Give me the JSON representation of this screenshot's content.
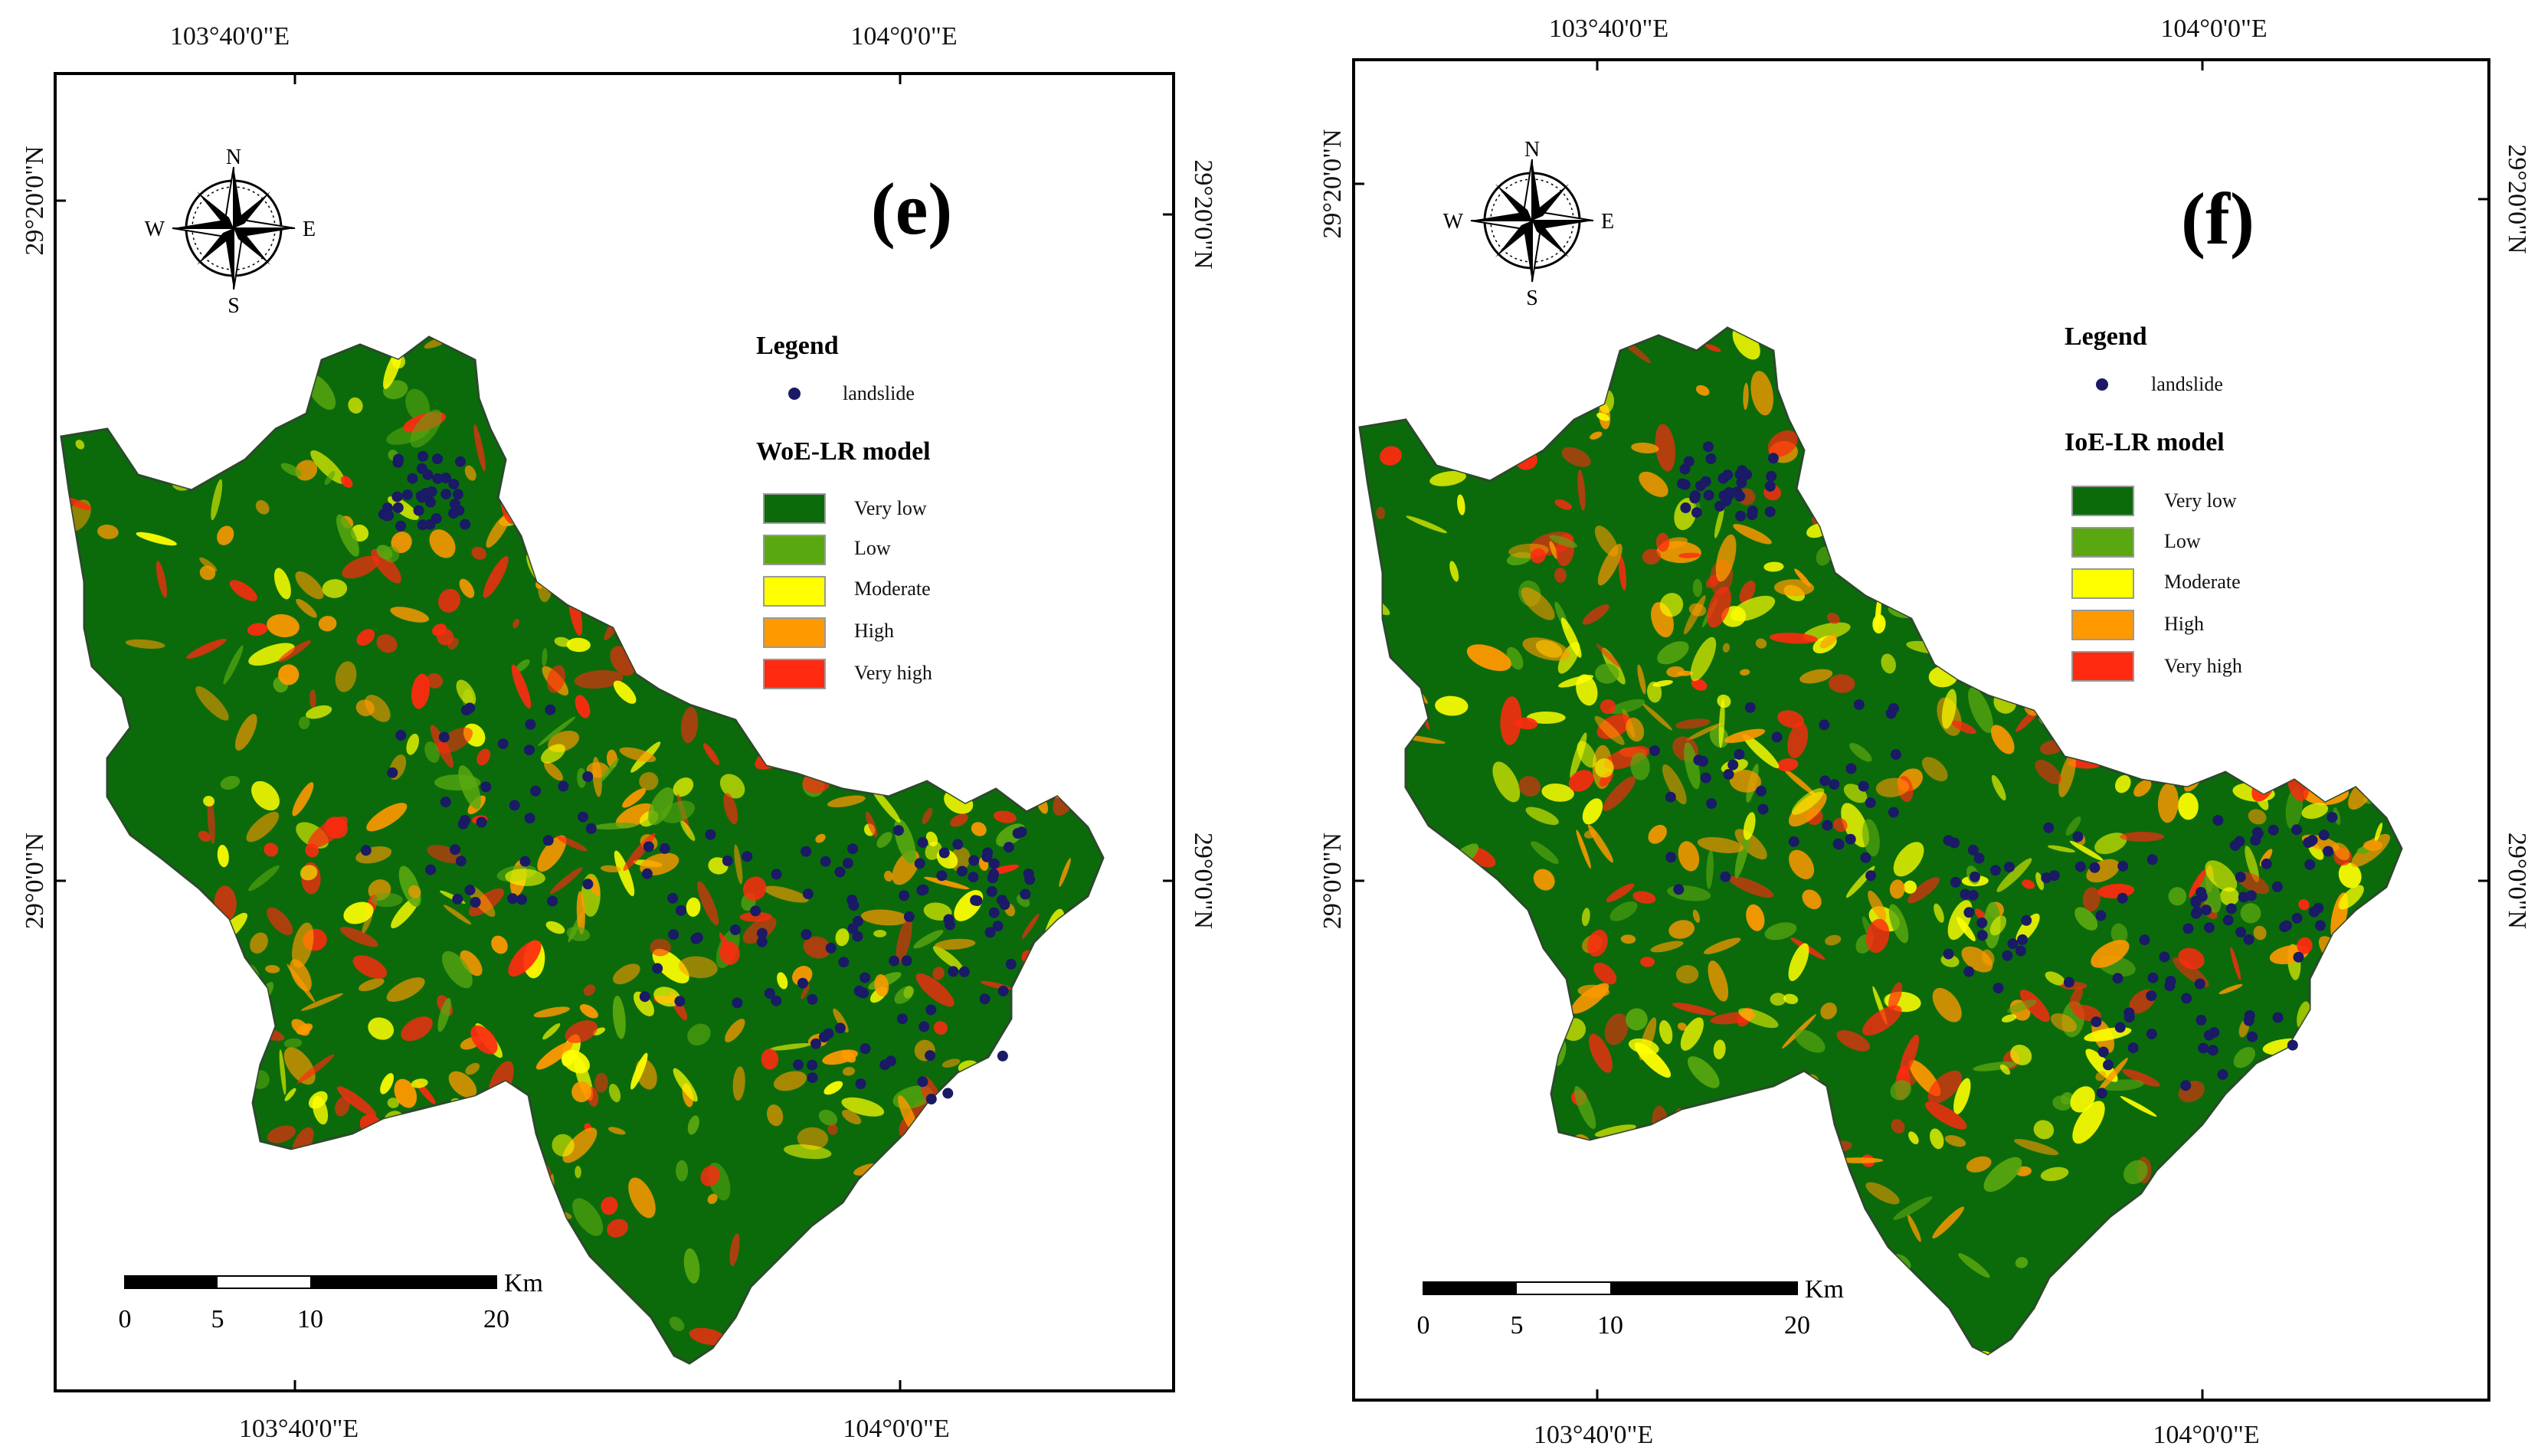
{
  "colors": {
    "very_low": "#0b6b0b",
    "low": "#5aa810",
    "moderate": "#ffff00",
    "high": "#ff9900",
    "very_high": "#ff2a10",
    "landslide": "#1a1a66",
    "frame": "#000000"
  },
  "coords": {
    "lon_west": "103°40'0\"E",
    "lon_east": "104°0'0\"E",
    "lat_north": "29°20'0\"N",
    "lat_south": "29°0'0\"N"
  },
  "compass": {
    "n": "N",
    "e": "E",
    "s": "S",
    "w": "W"
  },
  "scale": {
    "unit": "Km",
    "ticks": [
      "0",
      "5",
      "10",
      "20"
    ]
  },
  "panels": [
    {
      "label": "(e)",
      "legend_title": "Legend",
      "point_label": "landslide",
      "model_title": "WoE-LR model",
      "classes": [
        "Very low",
        "Low",
        "Moderate",
        "High",
        "Very high"
      ]
    },
    {
      "label": "(f)",
      "legend_title": "Legend",
      "point_label": "landslide",
      "model_title": "IoE-LR model",
      "classes": [
        "Very low",
        "Low",
        "Moderate",
        "High",
        "Very high"
      ]
    }
  ]
}
